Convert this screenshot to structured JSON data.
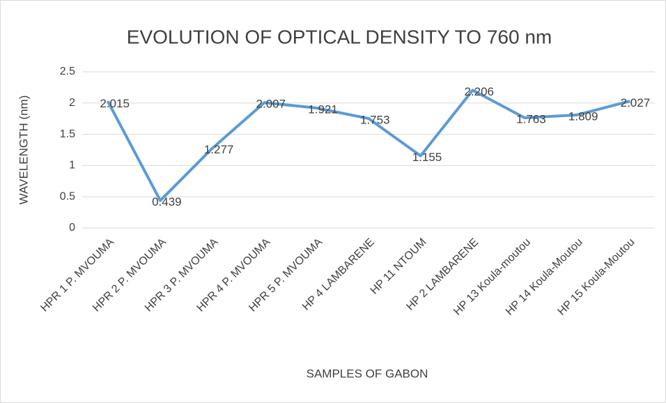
{
  "chart_data": {
    "type": "line",
    "title": "EVOLUTION OF OPTICAL DENSITY TO 760 nm",
    "x_label": "SAMPLES OF GABON",
    "y_label": "WAVELENGTH (nm)",
    "categories": [
      "HPR 1 P. MVOUMA",
      "HPR 2 P. MVOUMA",
      "HPR 3 P. MVOUMA",
      "HPR 4 P. MVOUMA",
      "HPR 5 P. MVOUMA",
      "HP 4 LAMBARENE",
      "HP 11 NTOUM",
      "HP 2 LAMBARENE",
      "HP 13 Koula-moutou",
      "HP 14 Koula-Moutou",
      "HP 15 Koula-Moutou"
    ],
    "series": [
      {
        "name": "Optical density",
        "color": "#5b9bd5",
        "values": [
          2.015,
          0.439,
          1.277,
          2.007,
          1.921,
          1.753,
          1.155,
          2.206,
          1.763,
          1.809,
          2.027
        ]
      }
    ],
    "ylim": [
      0,
      2.5
    ],
    "yticks": [
      0,
      0.5,
      1,
      1.5,
      2,
      2.5
    ],
    "grid": true
  }
}
